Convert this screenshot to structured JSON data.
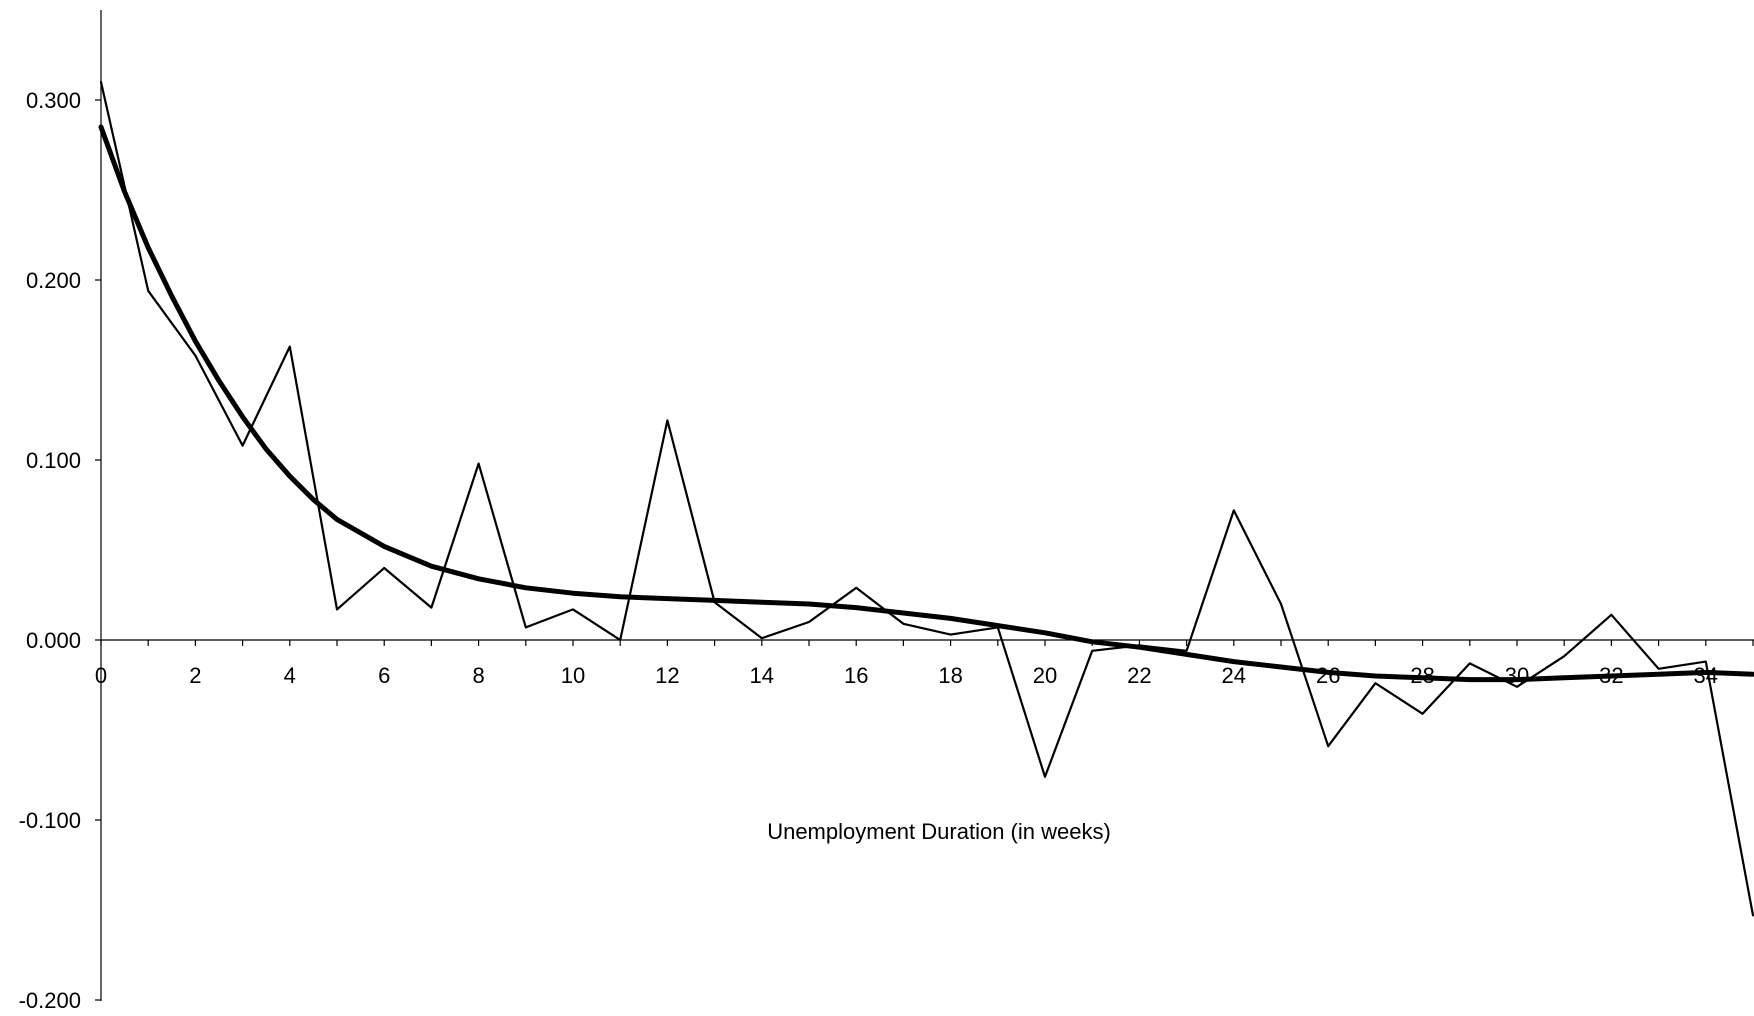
{
  "chart_data": {
    "type": "line",
    "title": "",
    "xlabel": "Unemployment Duration (in weeks)",
    "ylabel": "",
    "xlim": [
      0,
      35
    ],
    "ylim": [
      -0.2,
      0.35
    ],
    "grid": false,
    "x_ticks": [
      0,
      2,
      4,
      6,
      8,
      10,
      12,
      14,
      16,
      18,
      20,
      22,
      24,
      26,
      28,
      30,
      32,
      34
    ],
    "x_tick_labels": [
      "0",
      "2",
      "4",
      "6",
      "8",
      "10",
      "12",
      "14",
      "16",
      "18",
      "20",
      "22",
      "24",
      "26",
      "28",
      "30",
      "32",
      "34"
    ],
    "y_ticks": [
      -0.2,
      -0.1,
      0.0,
      0.1,
      0.2,
      0.3
    ],
    "y_tick_labels": [
      "-0.200",
      "-0.100",
      "0.000",
      "0.100",
      "0.200",
      "0.300"
    ],
    "series": [
      {
        "style": "thin",
        "color": "#000000",
        "x": [
          0,
          1,
          2,
          3,
          4,
          5,
          6,
          7,
          8,
          9,
          10,
          11,
          12,
          13,
          14,
          15,
          16,
          17,
          18,
          19,
          20,
          21,
          22,
          23,
          24,
          25,
          26,
          27,
          28,
          29,
          30,
          31,
          32,
          33,
          34,
          35
        ],
        "values": [
          0.31,
          0.194,
          0.158,
          0.108,
          0.163,
          0.017,
          0.04,
          0.018,
          0.098,
          0.007,
          0.017,
          0.0,
          0.122,
          0.021,
          0.001,
          0.01,
          0.029,
          0.009,
          0.003,
          0.007,
          -0.076,
          -0.006,
          -0.003,
          -0.006,
          0.072,
          0.02,
          -0.059,
          -0.024,
          -0.041,
          -0.013,
          -0.026,
          -0.009,
          0.014,
          -0.016,
          -0.012,
          -0.153
        ]
      },
      {
        "style": "thick",
        "color": "#000000",
        "x": [
          0,
          0.5,
          1,
          1.5,
          2,
          2.5,
          3,
          3.5,
          4,
          4.5,
          5,
          6,
          7,
          8,
          9,
          10,
          11,
          12,
          13,
          14,
          15,
          16,
          17,
          18,
          19,
          20,
          21,
          22,
          23,
          24,
          25,
          26,
          27,
          28,
          29,
          30,
          31,
          32,
          33,
          34,
          35
        ],
        "values": [
          0.285,
          0.249,
          0.218,
          0.191,
          0.166,
          0.144,
          0.124,
          0.106,
          0.091,
          0.078,
          0.067,
          0.052,
          0.041,
          0.034,
          0.029,
          0.026,
          0.024,
          0.023,
          0.022,
          0.021,
          0.02,
          0.018,
          0.015,
          0.012,
          0.008,
          0.004,
          -0.001,
          -0.004,
          -0.008,
          -0.012,
          -0.015,
          -0.018,
          -0.02,
          -0.021,
          -0.022,
          -0.022,
          -0.021,
          -0.02,
          -0.019,
          -0.018,
          -0.019
        ]
      }
    ]
  }
}
